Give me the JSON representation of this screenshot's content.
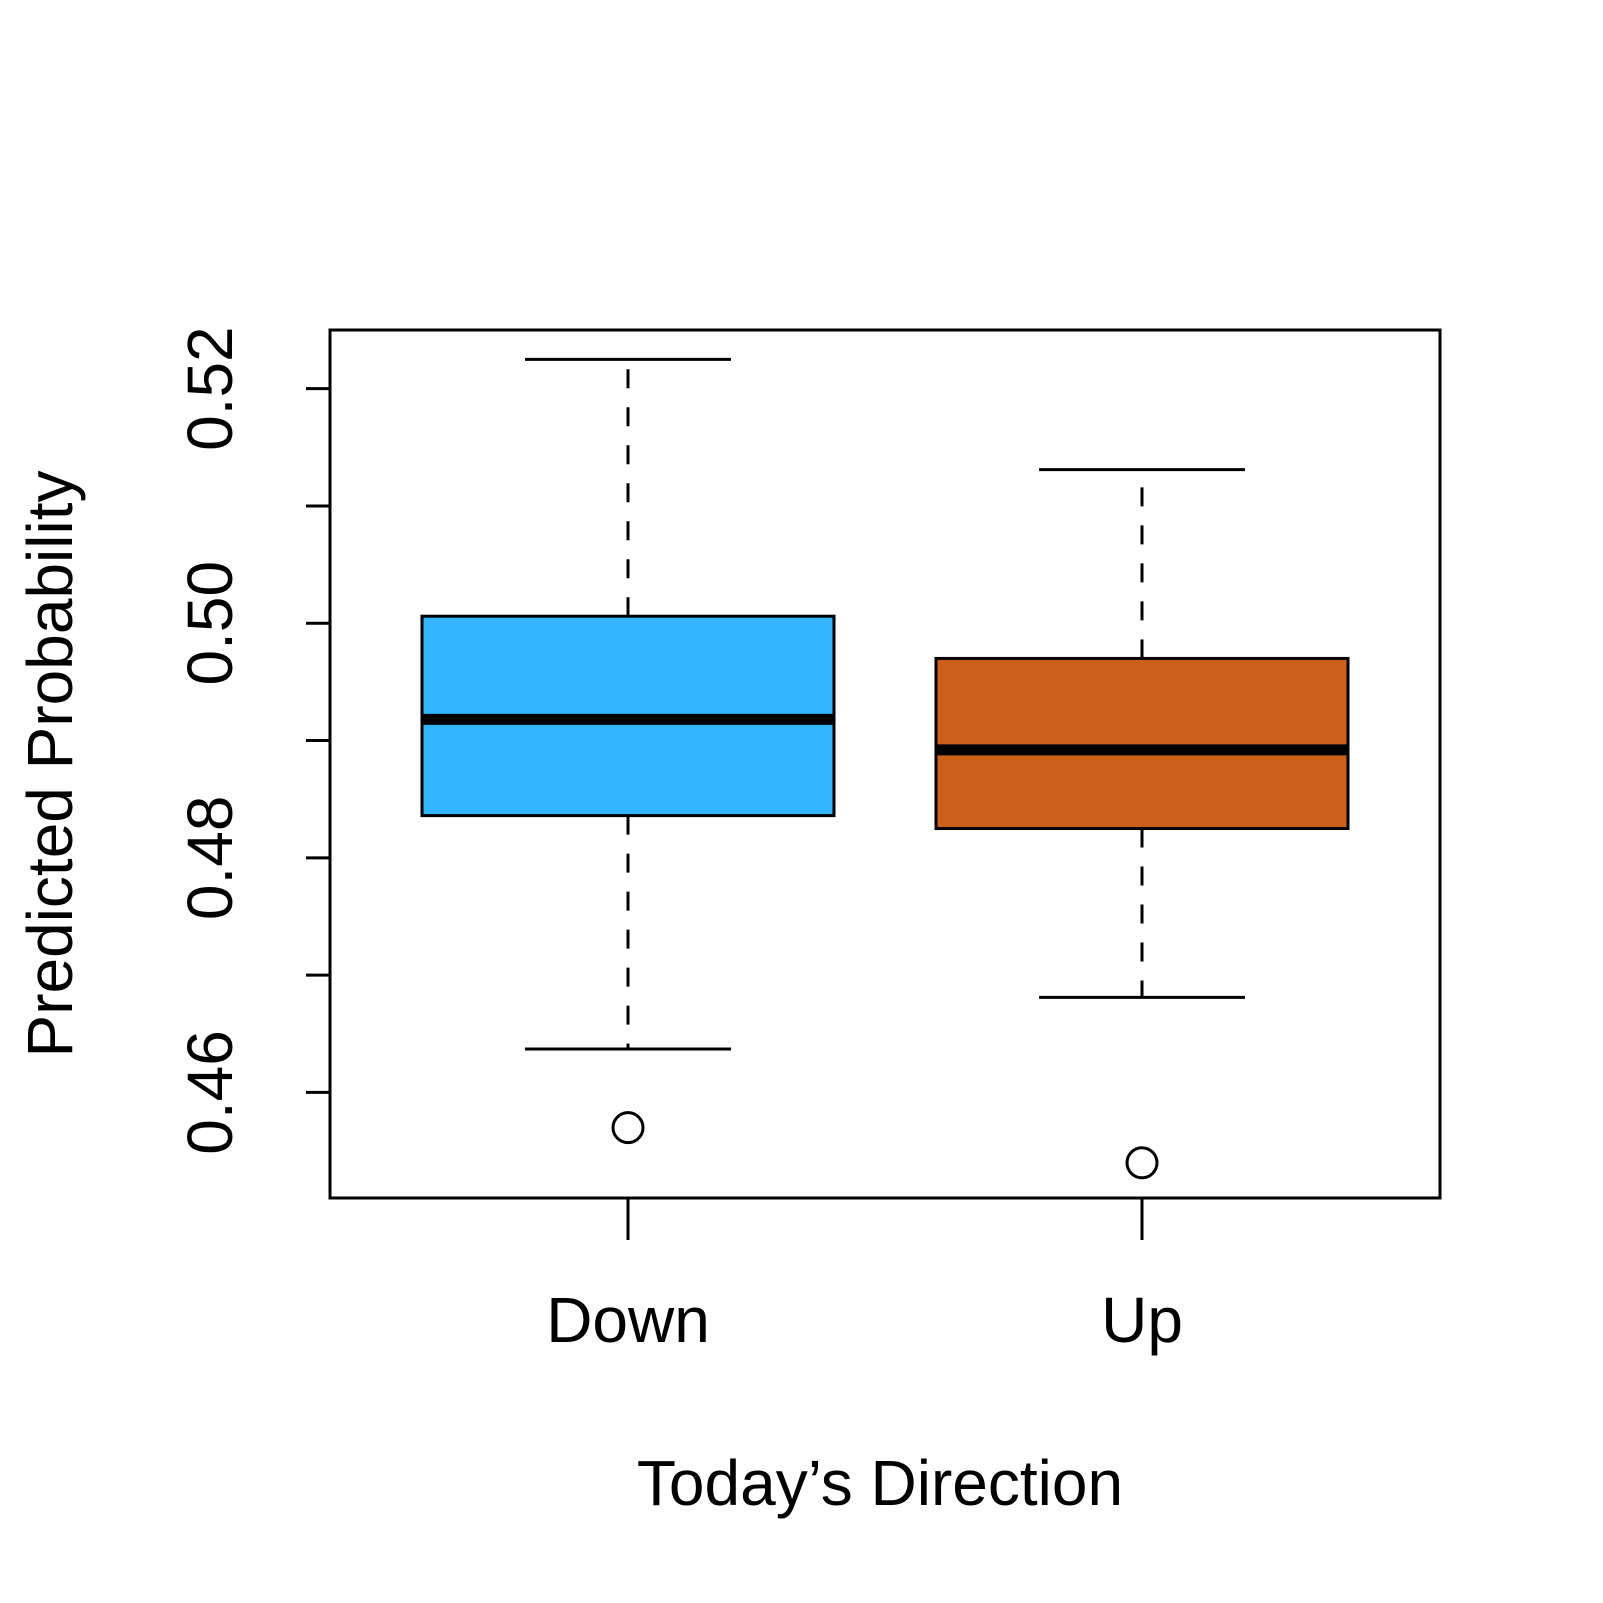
{
  "chart_data": {
    "type": "box",
    "xlabel": "Today’s Direction",
    "ylabel": "Predicted Probability",
    "categories": [
      "Down",
      "Up"
    ],
    "yticks": [
      0.46,
      0.47,
      0.48,
      0.49,
      0.5,
      0.51,
      0.52
    ],
    "ytick_labels": [
      "0.46",
      "",
      "0.48",
      "",
      "0.50",
      "",
      "0.52"
    ],
    "ylim": [
      0.451,
      0.525
    ],
    "grid": false,
    "legend": "none",
    "series": [
      {
        "category": "Down",
        "color": "#33b5ff",
        "whisker_low": 0.4637,
        "q1": 0.4836,
        "median": 0.4918,
        "q3": 0.5006,
        "whisker_high": 0.5225,
        "outliers": [
          0.457
        ]
      },
      {
        "category": "Up",
        "color": "#cc5f1a",
        "whisker_low": 0.4681,
        "q1": 0.4825,
        "median": 0.4892,
        "q3": 0.497,
        "whisker_high": 0.5131,
        "outliers": [
          0.454
        ]
      }
    ]
  }
}
